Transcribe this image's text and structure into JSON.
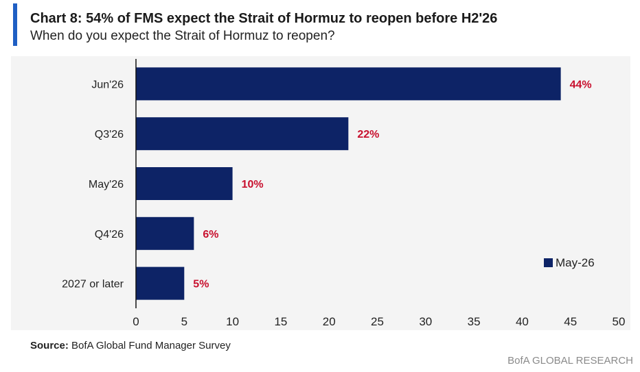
{
  "colors": {
    "accent": "#1f5fc4",
    "bar": "#0d2366",
    "data_label": "#c8102e",
    "axis": "#111111",
    "plot_background": "#f4f4f4"
  },
  "header": {
    "title": "Chart 8: 54% of FMS expect the Strait of Hormuz to reopen before H2'26",
    "subtitle": "When do you expect the Strait of Hormuz to reopen?"
  },
  "footer": {
    "source_label": "Source:",
    "source_text": " BofA Global Fund Manager Survey",
    "brand": "BofA GLOBAL RESEARCH"
  },
  "chart_data": {
    "type": "bar",
    "orientation": "horizontal",
    "categories": [
      "Jun'26",
      "Q3'26",
      "May'26",
      "Q4'26",
      "2027 or later"
    ],
    "series": [
      {
        "name": "May-26",
        "values": [
          44,
          22,
          10,
          6,
          5
        ],
        "data_labels": [
          "44%",
          "22%",
          "10%",
          "6%",
          "5%"
        ]
      }
    ],
    "xlim": [
      0,
      50
    ],
    "x_ticks": [
      "0",
      "5",
      "10",
      "15",
      "20",
      "25",
      "30",
      "35",
      "40",
      "45",
      "50"
    ],
    "grid": false,
    "legend": "bottom-right"
  }
}
